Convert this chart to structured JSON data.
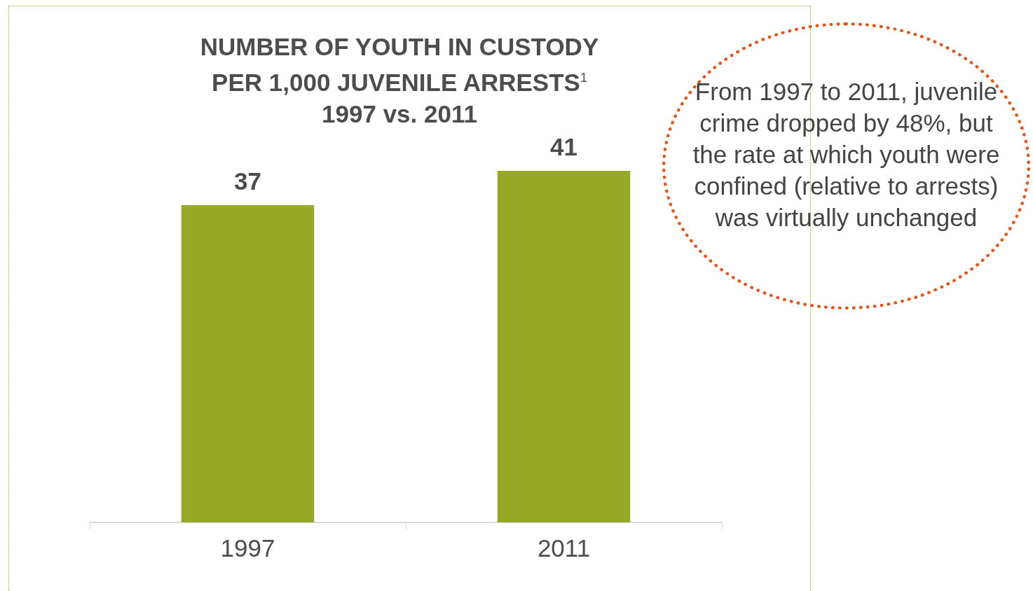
{
  "chart_data": {
    "type": "bar",
    "title": "NUMBER OF YOUTH IN CUSTODY\nPER 1,000 JUVENILE ARRESTS$^{1}$\n1997 vs. 2011",
    "categories": [
      "1997",
      "2011"
    ],
    "values": [
      37,
      41
    ],
    "color": "#97a826",
    "data_labels": true,
    "legend": false,
    "annotations": [
      "From 1997 to 2011, juvenile crime dropped by 48%, but the rate at which youth were confined (relative to arrests) was virtually unchanged"
    ]
  }
}
